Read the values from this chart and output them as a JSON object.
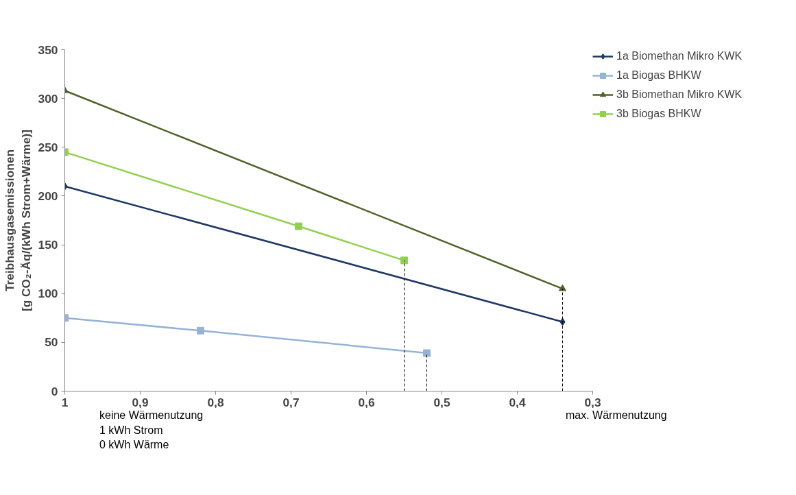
{
  "chart_data": {
    "type": "line",
    "ylabel": "Treibhausgasemissionen\n[g CO₂-Äq/(kWh Strom+Wärme)]",
    "xlim": [
      1,
      0.3
    ],
    "xticks": [
      1,
      {
        "value": 0.9,
        "label": "0,9"
      },
      {
        "value": 0.8,
        "label": "0,8"
      },
      {
        "value": 0.7,
        "label": "0,7"
      },
      {
        "value": 0.6,
        "label": "0,6"
      },
      {
        "value": 0.5,
        "label": "0,5"
      },
      {
        "value": 0.4,
        "label": "0,4"
      },
      {
        "value": 0.3,
        "label": "0,3"
      }
    ],
    "ylim": [
      0,
      350
    ],
    "yticks": [
      0,
      50,
      100,
      150,
      200,
      250,
      300,
      350
    ],
    "grid": false,
    "legend": "top right",
    "line_style": "solid",
    "series": [
      {
        "name": "1a Biomethan Mikro KWK",
        "color": "#1f3864",
        "marker": "diamond",
        "x": [
          1,
          0.34
        ],
        "values": [
          210,
          71
        ]
      },
      {
        "name": "1a Biogas BHKW",
        "color": "#95b3d7",
        "marker": "square",
        "x": [
          1,
          0.82,
          0.52
        ],
        "values": [
          75,
          62,
          39
        ]
      },
      {
        "name": "3b Biomethan Mikro KWK",
        "color": "#4f6228",
        "marker": "triangle",
        "x": [
          1,
          0.34
        ],
        "values": [
          308,
          105
        ]
      },
      {
        "name": "3b Biogas BHKW",
        "color": "#92d050",
        "marker": "square",
        "x": [
          1,
          0.69,
          0.55
        ],
        "values": [
          245,
          169,
          134
        ]
      }
    ],
    "ref_lines": [
      {
        "axis": "x",
        "value": 0.55,
        "color": "#000000",
        "line_style": "dashed"
      },
      {
        "axis": "x",
        "value": 0.52,
        "color": "#000000",
        "line_style": "dashed"
      },
      {
        "axis": "x",
        "value": 0.34,
        "color": "#000000",
        "line_style": "dashed"
      }
    ],
    "annotations": [
      "keine Wärmenutzung\n1 kWh Strom\n0 kWh Wärme",
      "max. Wärmenutzung"
    ]
  }
}
